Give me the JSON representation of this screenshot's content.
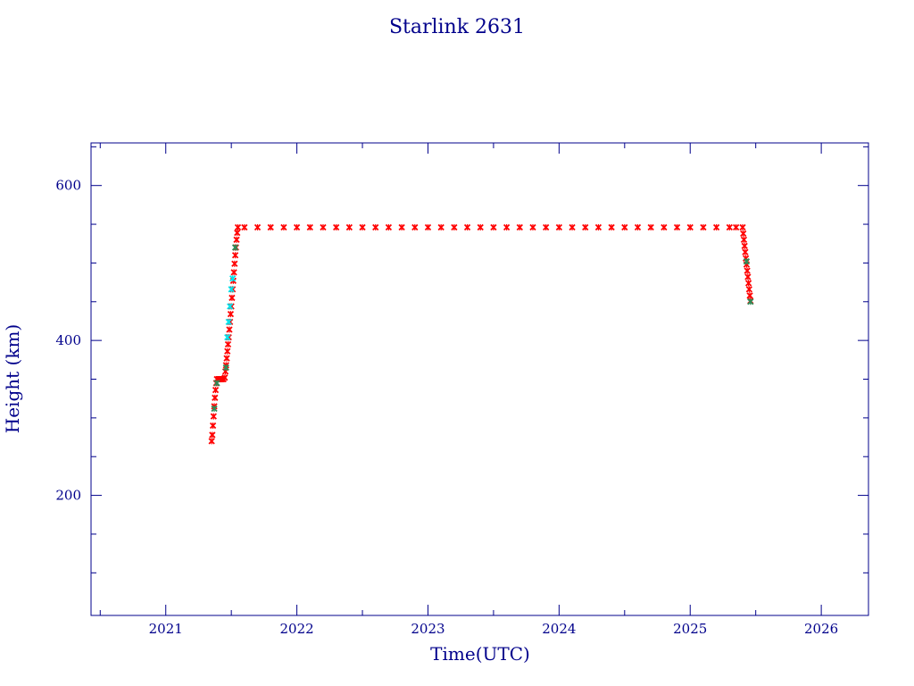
{
  "chart_data": {
    "type": "scatter",
    "title": "Starlink 2631",
    "xlabel": "Time(UTC)",
    "ylabel": "Height (km)",
    "xlim": [
      2020.43,
      2026.36
    ],
    "ylim": [
      45,
      655
    ],
    "x_major_ticks": [
      2021,
      2022,
      2023,
      2024,
      2025,
      2026
    ],
    "x_tick_labels": [
      "2021",
      "2022",
      "2023",
      "2024",
      "2025",
      "2026"
    ],
    "y_major_ticks": [
      200,
      400,
      600
    ],
    "y_tick_labels": [
      "200",
      "400",
      "600"
    ],
    "grid": false,
    "legend": "none",
    "colors": {
      "axis": "#00008b",
      "marker_primary": "#ff0000",
      "marker_secondary": "#00e5ee",
      "marker_tertiary": "#2e8b57"
    },
    "series": [
      {
        "marker_color": "#ff0000",
        "points": [
          [
            2021.35,
            270
          ],
          [
            2021.355,
            278
          ],
          [
            2021.36,
            290
          ],
          [
            2021.365,
            302
          ],
          [
            2021.37,
            315
          ],
          [
            2021.375,
            326
          ],
          [
            2021.38,
            336
          ],
          [
            2021.385,
            345
          ],
          [
            2021.39,
            350
          ],
          [
            2021.4,
            350
          ],
          [
            2021.41,
            350
          ],
          [
            2021.42,
            350
          ],
          [
            2021.43,
            350
          ],
          [
            2021.44,
            350
          ],
          [
            2021.45,
            352
          ],
          [
            2021.455,
            360
          ],
          [
            2021.46,
            368
          ],
          [
            2021.465,
            377
          ],
          [
            2021.47,
            386
          ],
          [
            2021.475,
            395
          ],
          [
            2021.48,
            404
          ],
          [
            2021.485,
            414
          ],
          [
            2021.49,
            424
          ],
          [
            2021.495,
            434
          ],
          [
            2021.5,
            444
          ],
          [
            2021.505,
            455
          ],
          [
            2021.51,
            466
          ],
          [
            2021.515,
            477
          ],
          [
            2021.52,
            488
          ],
          [
            2021.525,
            499
          ],
          [
            2021.53,
            510
          ],
          [
            2021.535,
            520
          ],
          [
            2021.54,
            530
          ],
          [
            2021.545,
            539
          ],
          [
            2021.55,
            546
          ],
          [
            2021.6,
            546
          ],
          [
            2021.7,
            546
          ],
          [
            2021.8,
            546
          ],
          [
            2021.9,
            546
          ],
          [
            2022.0,
            546
          ],
          [
            2022.1,
            546
          ],
          [
            2022.2,
            546
          ],
          [
            2022.3,
            546
          ],
          [
            2022.4,
            546
          ],
          [
            2022.5,
            546
          ],
          [
            2022.6,
            546
          ],
          [
            2022.7,
            546
          ],
          [
            2022.8,
            546
          ],
          [
            2022.9,
            546
          ],
          [
            2023.0,
            546
          ],
          [
            2023.1,
            546
          ],
          [
            2023.2,
            546
          ],
          [
            2023.3,
            546
          ],
          [
            2023.4,
            546
          ],
          [
            2023.5,
            546
          ],
          [
            2023.6,
            546
          ],
          [
            2023.7,
            546
          ],
          [
            2023.8,
            546
          ],
          [
            2023.9,
            546
          ],
          [
            2024.0,
            546
          ],
          [
            2024.1,
            546
          ],
          [
            2024.2,
            546
          ],
          [
            2024.3,
            546
          ],
          [
            2024.4,
            546
          ],
          [
            2024.5,
            546
          ],
          [
            2024.6,
            546
          ],
          [
            2024.7,
            546
          ],
          [
            2024.8,
            546
          ],
          [
            2024.9,
            546
          ],
          [
            2025.0,
            546
          ],
          [
            2025.1,
            546
          ],
          [
            2025.2,
            546
          ],
          [
            2025.3,
            546
          ],
          [
            2025.35,
            546
          ],
          [
            2025.4,
            546
          ],
          [
            2025.405,
            538
          ],
          [
            2025.41,
            530
          ],
          [
            2025.415,
            522
          ],
          [
            2025.42,
            514
          ],
          [
            2025.425,
            506
          ],
          [
            2025.43,
            498
          ],
          [
            2025.435,
            490
          ],
          [
            2025.44,
            482
          ],
          [
            2025.445,
            474
          ],
          [
            2025.45,
            466
          ],
          [
            2025.455,
            458
          ],
          [
            2025.46,
            451
          ]
        ]
      },
      {
        "marker_color": "#00e5ee",
        "points": [
          [
            2021.47,
            404
          ],
          [
            2021.48,
            424
          ],
          [
            2021.49,
            444
          ],
          [
            2021.5,
            466
          ],
          [
            2021.51,
            480
          ]
        ]
      },
      {
        "marker_color": "#2e8b57",
        "points": [
          [
            2021.37,
            312
          ],
          [
            2021.39,
            345
          ],
          [
            2021.46,
            365
          ],
          [
            2021.53,
            520
          ],
          [
            2025.43,
            502
          ],
          [
            2025.46,
            450
          ]
        ]
      }
    ]
  }
}
